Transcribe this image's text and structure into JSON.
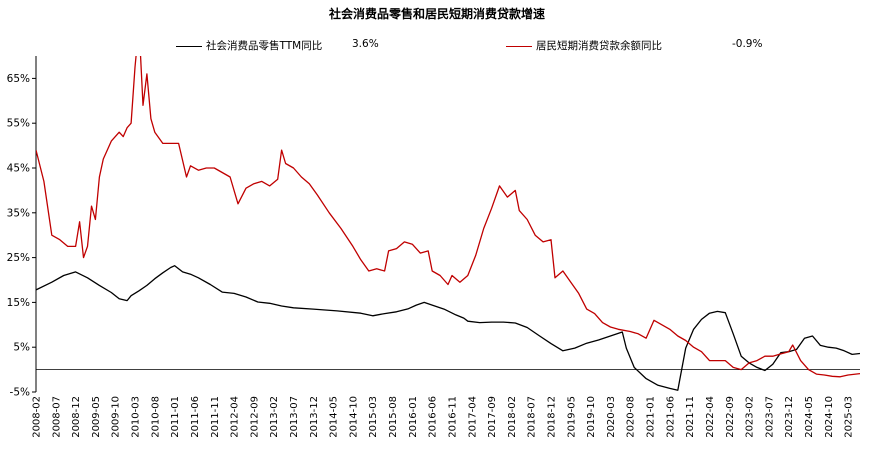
{
  "chart_data": {
    "type": "line",
    "title": "社会消费品零售和居民短期消费贷款增速",
    "xlabel": "",
    "ylabel": "",
    "ylim": [
      -5,
      70
    ],
    "y_ticks": [
      -5,
      5,
      15,
      25,
      35,
      45,
      55,
      65
    ],
    "y_tick_labels": [
      "-5%",
      "5%",
      "15%",
      "25%",
      "35%",
      "45%",
      "55%",
      "65%"
    ],
    "x_start": "2008-02",
    "x_end": "2025-06",
    "x_tick_labels": [
      "2008-02",
      "2008-07",
      "2008-12",
      "2009-05",
      "2009-10",
      "2010-03",
      "2010-08",
      "2011-01",
      "2011-06",
      "2011-11",
      "2012-04",
      "2012-09",
      "2013-02",
      "2013-07",
      "2013-12",
      "2014-05",
      "2014-10",
      "2015-03",
      "2015-08",
      "2016-01",
      "2016-06",
      "2016-11",
      "2017-04",
      "2017-09",
      "2018-02",
      "2018-07",
      "2018-12",
      "2019-05",
      "2019-10",
      "2020-03",
      "2020-08",
      "2021-01",
      "2021-06",
      "2021-11",
      "2022-04",
      "2022-09",
      "2023-02",
      "2023-07",
      "2023-12",
      "2024-05",
      "2024-10",
      "2025-03"
    ],
    "grid": false,
    "legend": "top",
    "series": [
      {
        "name": "社会消费品零售TTM同比",
        "latest_label": "3.6%",
        "color": "#000000",
        "points": [
          [
            "2008-02",
            17.8
          ],
          [
            "2008-06",
            19.5
          ],
          [
            "2008-09",
            21.0
          ],
          [
            "2008-12",
            21.8
          ],
          [
            "2009-03",
            20.5
          ],
          [
            "2009-06",
            18.8
          ],
          [
            "2009-09",
            17.2
          ],
          [
            "2009-11",
            15.8
          ],
          [
            "2010-01",
            15.4
          ],
          [
            "2010-02",
            16.5
          ],
          [
            "2010-04",
            17.6
          ],
          [
            "2010-06",
            18.8
          ],
          [
            "2010-08",
            20.3
          ],
          [
            "2010-10",
            21.6
          ],
          [
            "2010-12",
            22.8
          ],
          [
            "2011-01",
            23.2
          ],
          [
            "2011-03",
            21.8
          ],
          [
            "2011-05",
            21.3
          ],
          [
            "2011-07",
            20.5
          ],
          [
            "2011-10",
            19.0
          ],
          [
            "2012-01",
            17.3
          ],
          [
            "2012-04",
            17.0
          ],
          [
            "2012-07",
            16.2
          ],
          [
            "2012-10",
            15.1
          ],
          [
            "2013-01",
            14.8
          ],
          [
            "2013-04",
            14.2
          ],
          [
            "2013-07",
            13.8
          ],
          [
            "2013-12",
            13.5
          ],
          [
            "2014-06",
            13.1
          ],
          [
            "2014-12",
            12.6
          ],
          [
            "2015-03",
            12.0
          ],
          [
            "2015-06",
            12.5
          ],
          [
            "2015-09",
            12.9
          ],
          [
            "2015-12",
            13.6
          ],
          [
            "2016-02",
            14.4
          ],
          [
            "2016-04",
            15.0
          ],
          [
            "2016-06",
            14.4
          ],
          [
            "2016-09",
            13.5
          ],
          [
            "2016-12",
            12.2
          ],
          [
            "2017-02",
            11.5
          ],
          [
            "2017-03",
            10.8
          ],
          [
            "2017-06",
            10.5
          ],
          [
            "2017-09",
            10.6
          ],
          [
            "2017-12",
            10.6
          ],
          [
            "2018-03",
            10.4
          ],
          [
            "2018-06",
            9.4
          ],
          [
            "2018-09",
            7.6
          ],
          [
            "2018-12",
            5.8
          ],
          [
            "2019-03",
            4.2
          ],
          [
            "2019-06",
            4.8
          ],
          [
            "2019-09",
            5.9
          ],
          [
            "2019-12",
            6.6
          ],
          [
            "2020-03",
            7.5
          ],
          [
            "2020-06",
            8.4
          ],
          [
            "2020-07",
            4.8
          ],
          [
            "2020-09",
            0.5
          ],
          [
            "2020-12",
            -2.0
          ],
          [
            "2021-03",
            -3.5
          ],
          [
            "2021-06",
            -4.2
          ],
          [
            "2021-08",
            -4.6
          ],
          [
            "2021-10",
            4.8
          ],
          [
            "2021-12",
            9.0
          ],
          [
            "2022-02",
            11.2
          ],
          [
            "2022-04",
            12.6
          ],
          [
            "2022-06",
            13.0
          ],
          [
            "2022-08",
            12.7
          ],
          [
            "2022-10",
            8.0
          ],
          [
            "2022-12",
            3.0
          ],
          [
            "2023-02",
            1.5
          ],
          [
            "2023-04",
            0.5
          ],
          [
            "2023-06",
            -0.2
          ],
          [
            "2023-08",
            1.2
          ],
          [
            "2023-10",
            3.8
          ],
          [
            "2023-12",
            4.0
          ],
          [
            "2024-02",
            4.5
          ],
          [
            "2024-04",
            7.0
          ],
          [
            "2024-06",
            7.5
          ],
          [
            "2024-08",
            5.4
          ],
          [
            "2024-10",
            5.0
          ],
          [
            "2024-12",
            4.8
          ],
          [
            "2025-02",
            4.2
          ],
          [
            "2025-04",
            3.4
          ],
          [
            "2025-06",
            3.6
          ]
        ]
      },
      {
        "name": "居民短期消费贷款余额同比",
        "latest_label": "-0.9%",
        "color": "#c00000",
        "points": [
          [
            "2008-02",
            49.0
          ],
          [
            "2008-04",
            42.0
          ],
          [
            "2008-06",
            30.0
          ],
          [
            "2008-08",
            29.0
          ],
          [
            "2008-10",
            27.5
          ],
          [
            "2008-12",
            27.5
          ],
          [
            "2009-01",
            33.0
          ],
          [
            "2009-02",
            25.0
          ],
          [
            "2009-03",
            27.5
          ],
          [
            "2009-04",
            36.5
          ],
          [
            "2009-05",
            33.5
          ],
          [
            "2009-06",
            43.0
          ],
          [
            "2009-07",
            47.0
          ],
          [
            "2009-09",
            51.0
          ],
          [
            "2009-11",
            53.0
          ],
          [
            "2009-12",
            52.0
          ],
          [
            "2010-01",
            54.0
          ],
          [
            "2010-02",
            55.0
          ],
          [
            "2010-03",
            67.5
          ],
          [
            "2010-04",
            77.0
          ],
          [
            "2010-05",
            59.0
          ],
          [
            "2010-06",
            66.0
          ],
          [
            "2010-07",
            56.0
          ],
          [
            "2010-08",
            53.0
          ],
          [
            "2010-10",
            50.5
          ],
          [
            "2010-12",
            50.5
          ],
          [
            "2011-02",
            50.5
          ],
          [
            "2011-04",
            43.0
          ],
          [
            "2011-05",
            45.5
          ],
          [
            "2011-07",
            44.5
          ],
          [
            "2011-09",
            45.0
          ],
          [
            "2011-11",
            45.0
          ],
          [
            "2012-01",
            44.0
          ],
          [
            "2012-03",
            43.0
          ],
          [
            "2012-05",
            37.0
          ],
          [
            "2012-07",
            40.5
          ],
          [
            "2012-09",
            41.5
          ],
          [
            "2012-11",
            42.0
          ],
          [
            "2013-01",
            41.0
          ],
          [
            "2013-03",
            42.5
          ],
          [
            "2013-04",
            49.0
          ],
          [
            "2013-05",
            46.0
          ],
          [
            "2013-07",
            45.0
          ],
          [
            "2013-09",
            43.0
          ],
          [
            "2013-11",
            41.5
          ],
          [
            "2014-01",
            39.0
          ],
          [
            "2014-04",
            35.0
          ],
          [
            "2014-07",
            31.5
          ],
          [
            "2014-10",
            27.5
          ],
          [
            "2014-12",
            24.5
          ],
          [
            "2015-02",
            22.0
          ],
          [
            "2015-04",
            22.5
          ],
          [
            "2015-06",
            22.0
          ],
          [
            "2015-07",
            26.5
          ],
          [
            "2015-09",
            27.0
          ],
          [
            "2015-11",
            28.5
          ],
          [
            "2016-01",
            28.0
          ],
          [
            "2016-03",
            26.0
          ],
          [
            "2016-05",
            26.5
          ],
          [
            "2016-06",
            22.0
          ],
          [
            "2016-08",
            21.0
          ],
          [
            "2016-10",
            19.0
          ],
          [
            "2016-11",
            21.0
          ],
          [
            "2017-01",
            19.5
          ],
          [
            "2017-03",
            21.0
          ],
          [
            "2017-05",
            25.5
          ],
          [
            "2017-07",
            31.5
          ],
          [
            "2017-09",
            36.0
          ],
          [
            "2017-11",
            41.0
          ],
          [
            "2018-01",
            38.5
          ],
          [
            "2018-03",
            40.0
          ],
          [
            "2018-04",
            35.5
          ],
          [
            "2018-06",
            33.5
          ],
          [
            "2018-08",
            30.0
          ],
          [
            "2018-10",
            28.5
          ],
          [
            "2018-12",
            29.0
          ],
          [
            "2019-01",
            20.5
          ],
          [
            "2019-03",
            22.0
          ],
          [
            "2019-05",
            19.5
          ],
          [
            "2019-07",
            17.0
          ],
          [
            "2019-09",
            13.5
          ],
          [
            "2019-11",
            12.5
          ],
          [
            "2020-01",
            10.5
          ],
          [
            "2020-03",
            9.5
          ],
          [
            "2020-05",
            9.0
          ],
          [
            "2020-08",
            8.5
          ],
          [
            "2020-10",
            8.0
          ],
          [
            "2020-12",
            7.0
          ],
          [
            "2021-02",
            11.0
          ],
          [
            "2021-04",
            10.0
          ],
          [
            "2021-06",
            9.0
          ],
          [
            "2021-08",
            7.5
          ],
          [
            "2021-10",
            6.5
          ],
          [
            "2021-12",
            5.0
          ],
          [
            "2022-02",
            4.0
          ],
          [
            "2022-04",
            2.0
          ],
          [
            "2022-06",
            2.0
          ],
          [
            "2022-08",
            2.0
          ],
          [
            "2022-10",
            0.5
          ],
          [
            "2022-12",
            0.0
          ],
          [
            "2023-02",
            1.5
          ],
          [
            "2023-04",
            2.0
          ],
          [
            "2023-06",
            3.0
          ],
          [
            "2023-08",
            3.0
          ],
          [
            "2023-10",
            3.5
          ],
          [
            "2023-12",
            4.0
          ],
          [
            "2024-01",
            5.5
          ],
          [
            "2024-03",
            2.0
          ],
          [
            "2024-05",
            0.0
          ],
          [
            "2024-07",
            -1.0
          ],
          [
            "2024-09",
            -1.2
          ],
          [
            "2024-11",
            -1.5
          ],
          [
            "2025-01",
            -1.6
          ],
          [
            "2025-03",
            -1.2
          ],
          [
            "2025-06",
            -0.9
          ]
        ]
      }
    ]
  }
}
